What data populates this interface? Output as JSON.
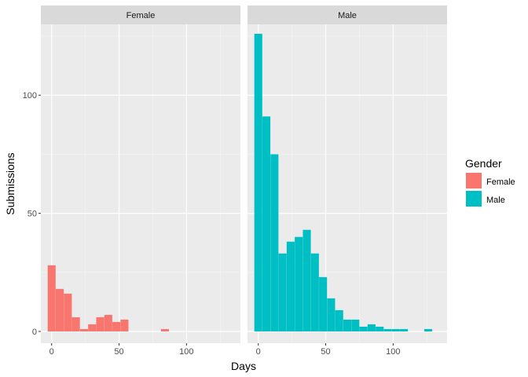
{
  "chart_data": {
    "type": "bar",
    "subtype": "faceted-histogram",
    "xlabel": "Days",
    "ylabel": "Submissions",
    "xlim": [
      -8,
      140
    ],
    "ylim": [
      -5,
      130
    ],
    "xticks": [
      0,
      50,
      100
    ],
    "yticks": [
      0,
      50,
      100
    ],
    "x_minor_grid": [
      25,
      75,
      125
    ],
    "y_minor_grid": [
      25,
      75,
      125
    ],
    "bin_width": 5.9,
    "grid": true,
    "legend": {
      "title": "Gender",
      "position": "right",
      "items": [
        {
          "label": "Female",
          "color": "#F8766D"
        },
        {
          "label": "Male",
          "color": "#00BFC4"
        }
      ]
    },
    "facets": [
      {
        "label": "Female",
        "color": "#F8766D",
        "bins": [
          {
            "x": 0,
            "value": 28
          },
          {
            "x": 6,
            "value": 18
          },
          {
            "x": 12,
            "value": 16
          },
          {
            "x": 18,
            "value": 6
          },
          {
            "x": 24,
            "value": 1
          },
          {
            "x": 30,
            "value": 3
          },
          {
            "x": 36,
            "value": 6
          },
          {
            "x": 42,
            "value": 7
          },
          {
            "x": 48,
            "value": 4
          },
          {
            "x": 54,
            "value": 5
          },
          {
            "x": 60,
            "value": 0
          },
          {
            "x": 66,
            "value": 0
          },
          {
            "x": 72,
            "value": 0
          },
          {
            "x": 78,
            "value": 0
          },
          {
            "x": 84,
            "value": 1
          }
        ]
      },
      {
        "label": "Male",
        "color": "#00BFC4",
        "bins": [
          {
            "x": 0,
            "value": 126
          },
          {
            "x": 6,
            "value": 91
          },
          {
            "x": 12,
            "value": 75
          },
          {
            "x": 18,
            "value": 33
          },
          {
            "x": 24,
            "value": 38
          },
          {
            "x": 30,
            "value": 40
          },
          {
            "x": 36,
            "value": 43
          },
          {
            "x": 42,
            "value": 33
          },
          {
            "x": 48,
            "value": 23
          },
          {
            "x": 54,
            "value": 14
          },
          {
            "x": 60,
            "value": 9
          },
          {
            "x": 66,
            "value": 5
          },
          {
            "x": 72,
            "value": 5
          },
          {
            "x": 78,
            "value": 2
          },
          {
            "x": 84,
            "value": 3
          },
          {
            "x": 90,
            "value": 2
          },
          {
            "x": 96,
            "value": 1
          },
          {
            "x": 102,
            "value": 1
          },
          {
            "x": 108,
            "value": 1
          },
          {
            "x": 114,
            "value": 0
          },
          {
            "x": 120,
            "value": 0
          },
          {
            "x": 126,
            "value": 1
          }
        ]
      }
    ]
  }
}
